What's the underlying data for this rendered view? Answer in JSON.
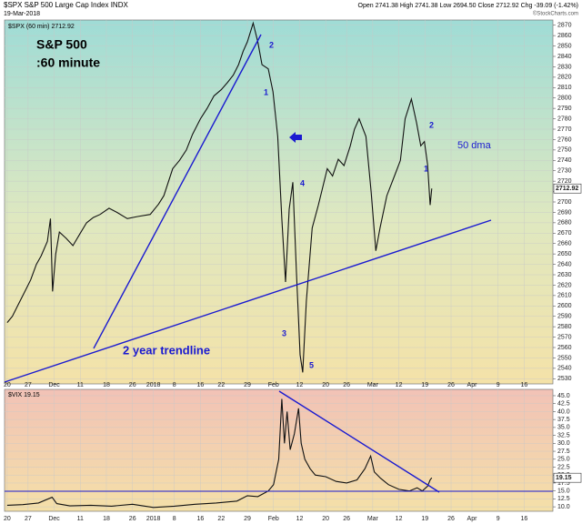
{
  "header": {
    "symbol": "$SPX S&P 500 Large Cap Index INDX",
    "date": "19-Mar-2018",
    "quote": "Open 2741.38  High 2741.38  Low 2694.50  Close 2712.92  Chg -39.09 (-1.42%)",
    "credit": "©StockCharts.com"
  },
  "chart_data": [
    {
      "type": "line",
      "panel_label": "$SPX (60 min) 2712.92",
      "title": "S&P 500",
      "subtitle": ":60 minute",
      "annotations": {
        "trendline": "2 year trendline",
        "dma": "50 dma",
        "waves": [
          "2",
          "1",
          "3",
          "4",
          "5",
          "2",
          "1"
        ]
      },
      "last_label": "2712.92",
      "xlim": [
        -0.5,
        104.5
      ],
      "xticks": [
        {
          "value": 0,
          "label": "20"
        },
        {
          "value": 4,
          "label": "27"
        },
        {
          "value": 9,
          "label": "Dec"
        },
        {
          "value": 14,
          "label": "11"
        },
        {
          "value": 19,
          "label": "18"
        },
        {
          "value": 24,
          "label": "26"
        },
        {
          "value": 28,
          "label": "2018"
        },
        {
          "value": 32,
          "label": "8"
        },
        {
          "value": 37,
          "label": "16"
        },
        {
          "value": 41,
          "label": "22"
        },
        {
          "value": 46,
          "label": "29"
        },
        {
          "value": 51,
          "label": "Feb"
        },
        {
          "value": 56,
          "label": "12"
        },
        {
          "value": 61,
          "label": "20"
        },
        {
          "value": 65,
          "label": "26"
        },
        {
          "value": 70,
          "label": "Mar"
        },
        {
          "value": 75,
          "label": "12"
        },
        {
          "value": 80,
          "label": "19"
        },
        {
          "value": 85,
          "label": "26"
        },
        {
          "value": 89,
          "label": "Apr"
        },
        {
          "value": 94,
          "label": "9"
        },
        {
          "value": 99,
          "label": "16"
        }
      ],
      "ylim": [
        2525,
        2875
      ],
      "yticks": [
        2530,
        2540,
        2550,
        2560,
        2570,
        2580,
        2590,
        2600,
        2610,
        2620,
        2630,
        2640,
        2650,
        2660,
        2670,
        2680,
        2690,
        2700,
        2710,
        2720,
        2730,
        2740,
        2750,
        2760,
        2770,
        2780,
        2790,
        2800,
        2810,
        2820,
        2830,
        2840,
        2850,
        2860,
        2870
      ],
      "grid": true,
      "x": [
        0,
        1,
        2.1,
        3.5,
        4.5,
        5.6,
        6.5,
        7.7,
        8.3,
        8.7,
        9.3,
        10,
        11.3,
        12.6,
        14,
        15.2,
        16.5,
        17.8,
        19.5,
        21,
        23,
        25,
        27.4,
        29,
        30,
        31.7,
        33,
        34.3,
        35.5,
        37,
        38.3,
        39.6,
        41,
        42.2,
        43.3,
        44.3,
        45.2,
        46,
        47.1,
        48,
        48.8,
        50,
        50.9,
        51.8,
        52.6,
        53.3,
        54,
        54.7,
        55.4,
        56.1,
        56.6,
        57.3,
        58.4,
        59.6,
        61.3,
        62.3,
        63.4,
        64.5,
        65.7,
        66.5,
        67.4,
        68.7,
        69.7,
        70.6,
        71.4,
        72.7,
        74.4,
        75.3,
        76.2,
        77.4,
        78.4,
        79.2,
        79.9,
        80.5,
        81,
        81.3
      ],
      "series": [
        {
          "name": "$SPX",
          "color": "#111111",
          "values": [
            2584,
            2590,
            2601,
            2615,
            2625,
            2640,
            2648,
            2662,
            2684,
            2614,
            2650,
            2671,
            2665,
            2658,
            2670,
            2680,
            2685,
            2688,
            2694,
            2690,
            2684,
            2686,
            2688,
            2698,
            2706,
            2732,
            2740,
            2750,
            2765,
            2780,
            2790,
            2802,
            2808,
            2815,
            2822,
            2832,
            2845,
            2854,
            2872,
            2854,
            2832,
            2828,
            2806,
            2763,
            2684,
            2623,
            2693,
            2719,
            2632,
            2553,
            2536,
            2605,
            2675,
            2697,
            2732,
            2725,
            2741,
            2735,
            2754,
            2770,
            2780,
            2763,
            2710,
            2653,
            2675,
            2706,
            2728,
            2740,
            2780,
            2799,
            2776,
            2754,
            2758,
            2736,
            2697,
            2712.92
          ]
        }
      ]
    },
    {
      "type": "line",
      "panel_label": "$VIX 19.15",
      "last_label": "19.15",
      "xlim": [
        -0.5,
        104.5
      ],
      "ylim": [
        8.6,
        47
      ],
      "yticks": [
        {
          "value": 10,
          "label": "10.0"
        },
        12.5,
        {
          "value": 15,
          "label": "15.0"
        },
        17.5,
        {
          "value": 20,
          "label": "20.0"
        },
        22.5,
        {
          "value": 25,
          "label": "25.0"
        },
        27.5,
        {
          "value": 30,
          "label": "30.0"
        },
        32.5,
        {
          "value": 35,
          "label": "35.0"
        },
        37.5,
        {
          "value": 40,
          "label": "40.0"
        },
        42.5,
        {
          "value": 45,
          "label": "45.0"
        }
      ],
      "grid": true,
      "x": [
        0,
        3,
        6,
        8.6,
        9.5,
        12,
        16,
        20,
        24,
        28,
        32,
        36,
        40,
        44,
        46,
        48,
        50,
        51,
        52,
        52.6,
        53.1,
        53.6,
        54.2,
        55,
        55.8,
        56.3,
        57,
        58,
        59,
        61,
        63,
        65,
        67,
        68.5,
        69.6,
        70.3,
        71.5,
        73,
        75,
        77,
        78.5,
        79.5,
        80.5,
        81,
        81.3
      ],
      "series": [
        {
          "name": "$VIX",
          "color": "#111111",
          "values": [
            10.5,
            10.7,
            11.2,
            13,
            11,
            10.3,
            10.5,
            10.2,
            10.8,
            9.8,
            10.2,
            10.8,
            11.2,
            11.8,
            13.5,
            13.2,
            15,
            17,
            25,
            44,
            30,
            40,
            28,
            33,
            41,
            30,
            25,
            22,
            20,
            19.5,
            18,
            17.5,
            18.5,
            22,
            26,
            21,
            19,
            17,
            15.5,
            15,
            16,
            15,
            16.5,
            18.5,
            19.15
          ]
        }
      ]
    }
  ]
}
